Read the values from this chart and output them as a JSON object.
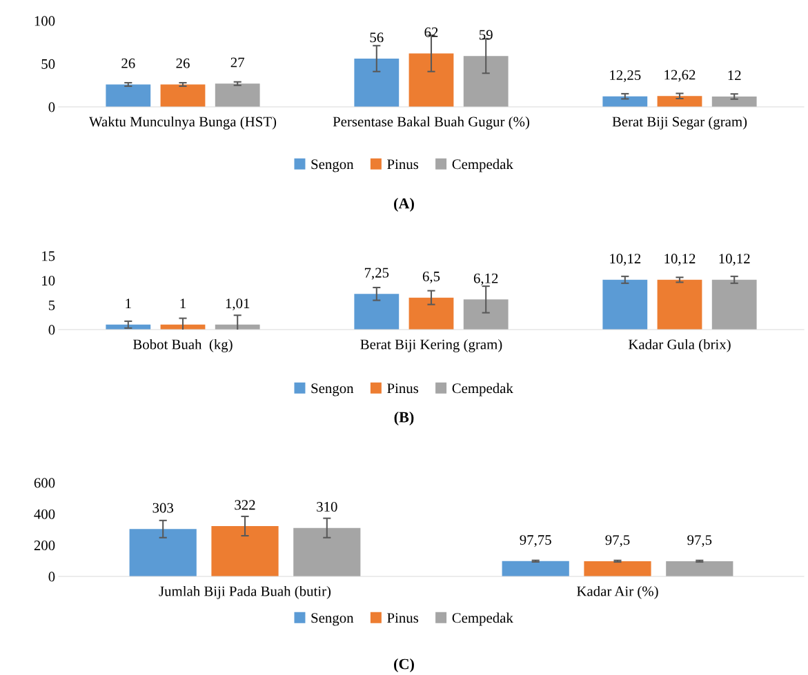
{
  "chart_data": [
    {
      "type": "bar",
      "title": "(A)",
      "categories": [
        "Waktu Munculnya Bunga (HST)",
        "Persentase Bakal Buah Gugur (%)",
        "Berat Biji Segar (gram)"
      ],
      "ylim": [
        0,
        100
      ],
      "yticks": [
        0,
        50,
        100
      ],
      "legend": "bottom",
      "grid": false,
      "series": [
        {
          "name": "Sengon",
          "color": "#5b9bd5",
          "values": [
            26,
            56,
            12.25
          ],
          "errors": [
            2,
            15,
            3
          ],
          "value_labels": [
            "26",
            "56",
            "12,25"
          ]
        },
        {
          "name": "Pinus",
          "color": "#ed7d31",
          "values": [
            26,
            62,
            12.62
          ],
          "errors": [
            2,
            21,
            3
          ],
          "value_labels": [
            "26",
            "62",
            "12,62"
          ]
        },
        {
          "name": "Cempedak",
          "color": "#a5a5a5",
          "values": [
            27,
            59,
            12
          ],
          "errors": [
            2,
            20,
            3
          ],
          "value_labels": [
            "27",
            "59",
            "12"
          ]
        }
      ]
    },
    {
      "type": "bar",
      "title": "(B)",
      "categories": [
        "Bobot Buah  (kg)",
        "Berat Biji Kering (gram)",
        "Kadar Gula (brix)"
      ],
      "ylim": [
        0,
        15
      ],
      "yticks": [
        0,
        5,
        10,
        15
      ],
      "legend": "bottom",
      "grid": false,
      "series": [
        {
          "name": "Sengon",
          "color": "#5b9bd5",
          "values": [
            1,
            7.25,
            10.12
          ],
          "errors": [
            0.7,
            1.3,
            0.7
          ],
          "value_labels": [
            "1",
            "7,25",
            "10,12"
          ]
        },
        {
          "name": "Pinus",
          "color": "#ed7d31",
          "values": [
            1,
            6.5,
            10.12
          ],
          "errors": [
            1.3,
            1.4,
            0.5
          ],
          "value_labels": [
            "1",
            "6,5",
            "10,12"
          ]
        },
        {
          "name": "Cempedak",
          "color": "#a5a5a5",
          "values": [
            1.01,
            6.12,
            10.12
          ],
          "errors": [
            1.9,
            2.7,
            0.7
          ],
          "value_labels": [
            "1,01",
            "6,12",
            "10,12"
          ]
        }
      ]
    },
    {
      "type": "bar",
      "title": "(C)",
      "categories": [
        "Jumlah Biji Pada Buah (butir)",
        "Kadar Air (%)"
      ],
      "ylim": [
        0,
        600
      ],
      "yticks": [
        0,
        200,
        400,
        600
      ],
      "legend": "bottom",
      "grid": false,
      "series": [
        {
          "name": "Sengon",
          "color": "#5b9bd5",
          "values": [
            303,
            97.75
          ],
          "errors": [
            55,
            5
          ],
          "value_labels": [
            "303",
            "97,75"
          ]
        },
        {
          "name": "Pinus",
          "color": "#ed7d31",
          "values": [
            322,
            97.5
          ],
          "errors": [
            62,
            5
          ],
          "value_labels": [
            "322",
            "97,5"
          ]
        },
        {
          "name": "Cempedak",
          "color": "#a5a5a5",
          "values": [
            310,
            97.5
          ],
          "errors": [
            62,
            5
          ],
          "value_labels": [
            "310",
            "97,5"
          ]
        }
      ]
    }
  ]
}
